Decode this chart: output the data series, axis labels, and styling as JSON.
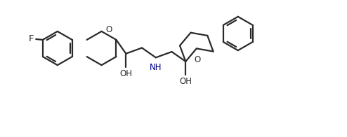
{
  "bg": "#ffffff",
  "lc": "#2a2a2a",
  "nhc": "#00008b",
  "lw": 1.6,
  "figsize": [
    4.94,
    1.96
  ],
  "dpi": 100,
  "F": "F",
  "O_left": "O",
  "O_right": "O",
  "NH": "NH",
  "OH1": "OH",
  "OH2": "OH",
  "fs": 8.5,
  "r": 0.5,
  "xlim": [
    0,
    10
  ],
  "ylim": [
    0,
    4
  ]
}
